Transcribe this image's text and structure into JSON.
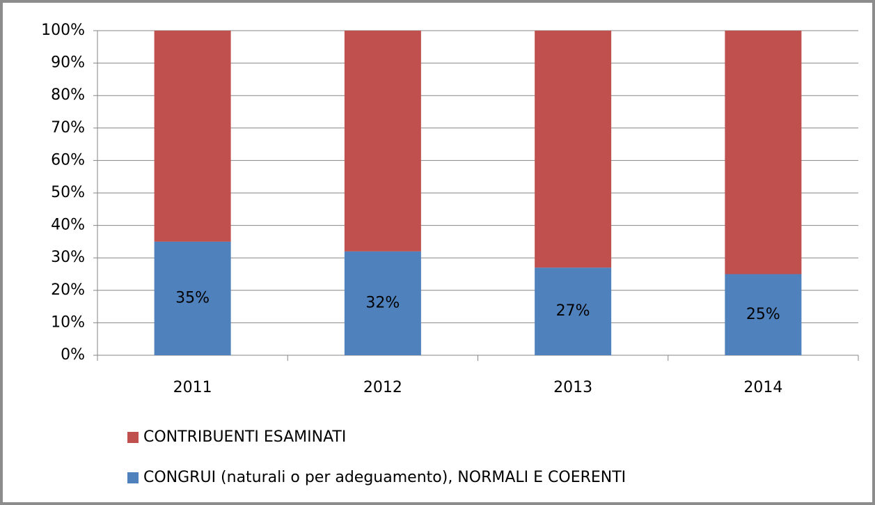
{
  "chart_data": {
    "type": "stacked_bar",
    "categories": [
      "2011",
      "2012",
      "2013",
      "2014"
    ],
    "series": [
      {
        "name": "CONGRUI (naturali o per adeguamento), NORMALI E COERENTI",
        "color": "#4f81bd",
        "values": [
          35,
          32,
          27,
          25
        ],
        "value_labels": [
          "35%",
          "32%",
          "27%",
          "25%"
        ]
      },
      {
        "name": "CONTRIBUENTI ESAMINATI",
        "color": "#c0504d",
        "values": [
          65,
          68,
          73,
          75
        ]
      }
    ],
    "ylim": [
      0,
      100
    ],
    "yticks": [
      {
        "value": 0,
        "label": "0%"
      },
      {
        "value": 10,
        "label": "10%"
      },
      {
        "value": 20,
        "label": "20%"
      },
      {
        "value": 30,
        "label": "30%"
      },
      {
        "value": 40,
        "label": "40%"
      },
      {
        "value": 50,
        "label": "50%"
      },
      {
        "value": 60,
        "label": "60%"
      },
      {
        "value": 70,
        "label": "70%"
      },
      {
        "value": 80,
        "label": "80%"
      },
      {
        "value": 90,
        "label": "90%"
      },
      {
        "value": 100,
        "label": "100%"
      }
    ],
    "grid": true
  }
}
